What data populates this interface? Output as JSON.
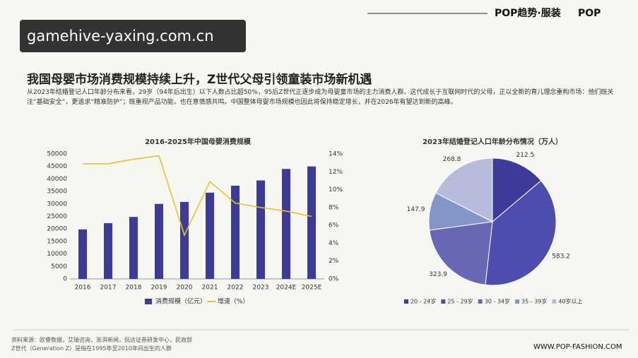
{
  "watermark": "gamehive-yaxing.com.cn",
  "brand": "POP趋势·服装",
  "brand2": "POP",
  "title": "我国母婴市场消费规模持续上升，Z世代父母引领童装市场新机遇",
  "paragraph": "从2023年结婚登记人口年龄分布来看，29岁（94年后出生）以下人数占比超50%，95后Z世代正逐步成为母婴童市场的主力消费人群。这代成长于互联网时代的父母，正以全新的育儿理念重构市场：他们既关注“基础安全”，更追求“精准防护”；既重视产品功能，也在意情感共鸣。中国整体母婴市场规模也因此将保持稳定增长，并在2026年有望达到新的高峰。",
  "source": [
    "资料来源：欧睿数据，艾瑞咨询，澎湃新闻，侃达证券研发中心，民政部",
    "Z世代（Generation Z）是指在1995年至2010年间出生的人群"
  ],
  "url": "WWW.POP-FASHION.COM",
  "chart_data": [
    {
      "type": "bar",
      "title": "2016-2025年中国母婴消费规模",
      "categories": [
        "2016",
        "2017",
        "2018",
        "2019",
        "2020",
        "2021",
        "2022",
        "2023",
        "2024E",
        "2025E"
      ],
      "series": [
        {
          "name": "消费规模（亿元）",
          "color": "#3c3c98",
          "values": [
            19800,
            22300,
            24800,
            30000,
            30800,
            34500,
            37300,
            39400,
            44000,
            45000
          ]
        },
        {
          "name": "增速（%）",
          "color": "#e8c521",
          "type": "line",
          "axis": "y2",
          "values": [
            12.9,
            12.9,
            13.4,
            13.8,
            4.9,
            10.9,
            8.5,
            8.0,
            7.6,
            7.0
          ]
        }
      ],
      "ylim": [
        0,
        50000
      ],
      "yticks": [
        0,
        5000,
        10000,
        15000,
        20000,
        25000,
        30000,
        35000,
        40000,
        45000,
        50000
      ],
      "y2lim": [
        0,
        14
      ],
      "y2ticks": [
        {
          "value": 0,
          "label": "0%"
        },
        {
          "value": 2,
          "label": "2%"
        },
        {
          "value": 4,
          "label": "4%"
        },
        {
          "value": 6,
          "label": "6%"
        },
        {
          "value": 8,
          "label": "8%"
        },
        {
          "value": 10,
          "label": "10%"
        },
        {
          "value": 12,
          "label": "12%"
        },
        {
          "value": 14,
          "label": "14%"
        }
      ]
    },
    {
      "type": "pie",
      "title": "2023年结婚登记人口年龄分布情况（万人）",
      "categories": [
        "20 - 24岁",
        "25 - 29岁",
        "30 - 34岁",
        "35 - 39岁",
        "40岁以上"
      ],
      "values": [
        212.5,
        583.2,
        323.9,
        147.9,
        268.8
      ],
      "colors": [
        "#3c3c98",
        "#4d4db0",
        "#6767b6",
        "#8496c8",
        "#b8bcdc"
      ]
    }
  ]
}
